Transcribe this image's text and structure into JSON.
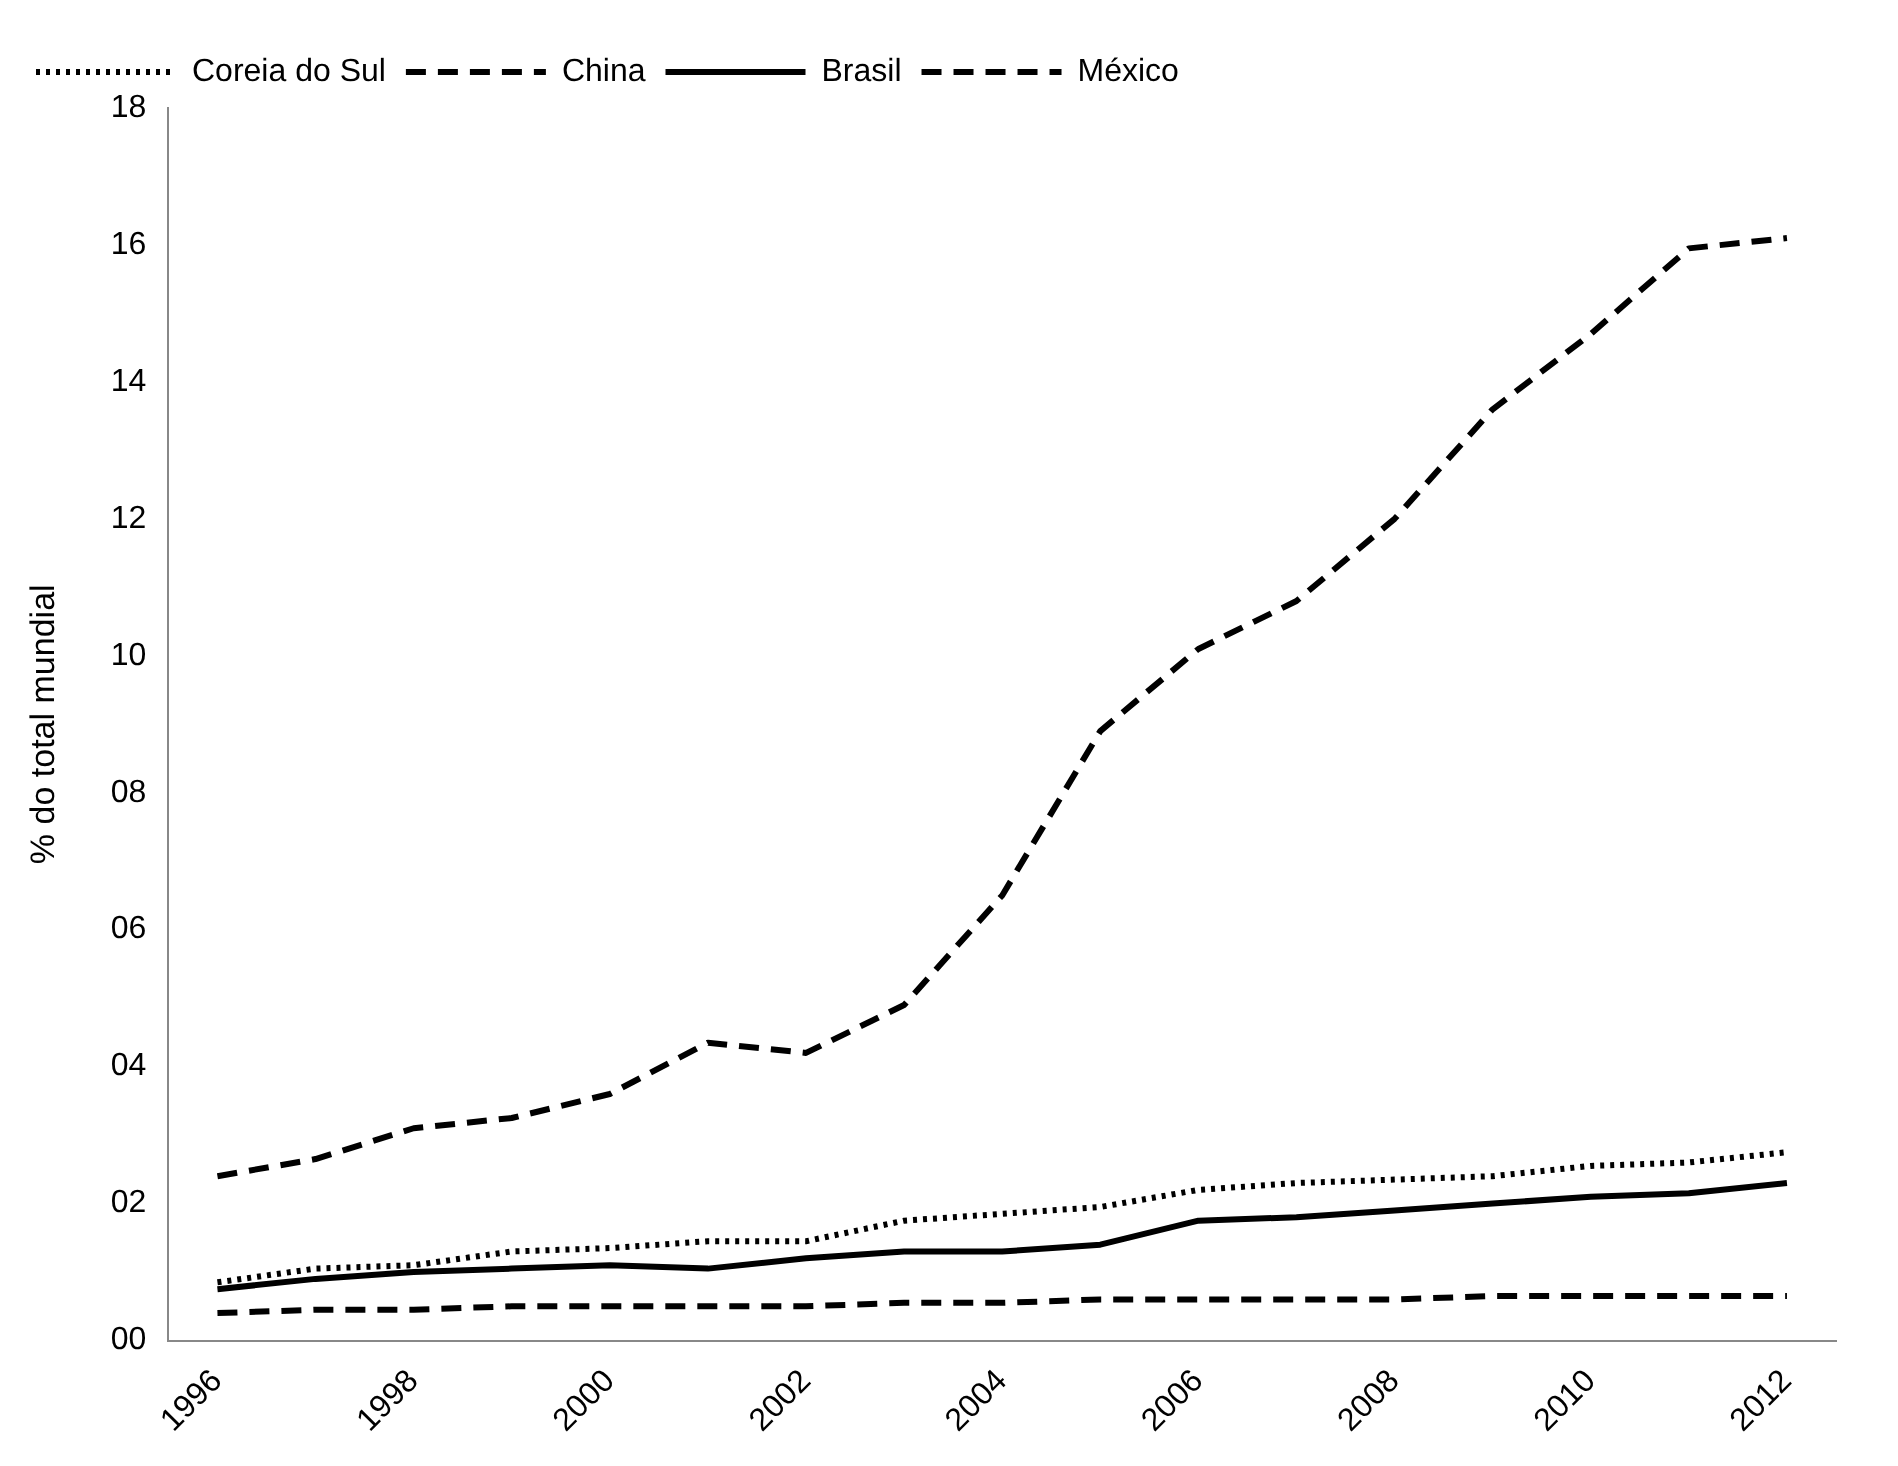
{
  "chart_data": {
    "type": "line",
    "ylabel": "% do total mundial",
    "categories": [
      "1996",
      null,
      "1998",
      null,
      "2000",
      null,
      "2002",
      null,
      "2004",
      null,
      "2006",
      null,
      "2008",
      null,
      "2010",
      null,
      "2012"
    ],
    "series": [
      {
        "name": "Coreia do Sul",
        "color": "#000000",
        "line_style": "dotted",
        "values": [
          0.85,
          1.05,
          1.1,
          1.3,
          1.35,
          1.45,
          1.45,
          1.75,
          1.85,
          1.95,
          2.2,
          2.3,
          2.35,
          2.4,
          2.55,
          2.6,
          2.75
        ]
      },
      {
        "name": "China",
        "color": "#000000",
        "line_style": "dashed",
        "values": [
          2.4,
          2.65,
          3.1,
          3.25,
          3.6,
          4.35,
          4.2,
          4.9,
          6.5,
          8.9,
          10.1,
          10.8,
          12.0,
          13.6,
          14.7,
          15.95,
          16.1
        ]
      },
      {
        "name": "Brasil",
        "color": "#000000",
        "line_style": "solid",
        "values": [
          0.75,
          0.9,
          1.0,
          1.05,
          1.1,
          1.05,
          1.2,
          1.3,
          1.3,
          1.4,
          1.75,
          1.8,
          1.9,
          2.0,
          2.1,
          2.15,
          2.3
        ]
      },
      {
        "name": "México",
        "color": "#000000",
        "line_style": "dashed",
        "values": [
          0.4,
          0.45,
          0.45,
          0.5,
          0.5,
          0.5,
          0.5,
          0.55,
          0.55,
          0.6,
          0.6,
          0.6,
          0.6,
          0.65,
          0.65,
          0.65,
          0.65
        ]
      }
    ],
    "ylim": [
      0,
      18
    ],
    "yticks": [
      {
        "value": 0,
        "label": "00"
      },
      {
        "value": 2,
        "label": "02"
      },
      {
        "value": 4,
        "label": "04"
      },
      {
        "value": 6,
        "label": "06"
      },
      {
        "value": 8,
        "label": "08"
      },
      10,
      12,
      14,
      16,
      18
    ],
    "grid": false,
    "legend": "top left",
    "marker": "none"
  }
}
